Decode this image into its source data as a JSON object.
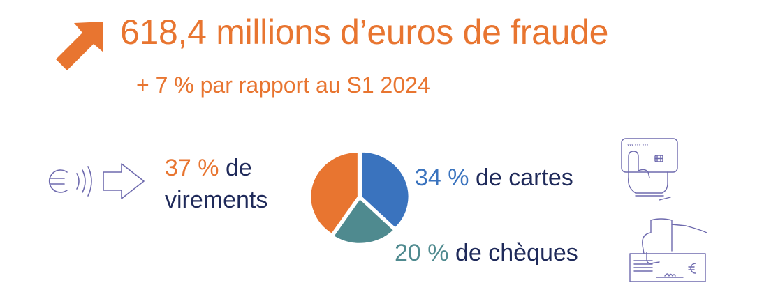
{
  "headline": "618,4 millions d’euros de fraude",
  "subline": "+ 7 % par rapport au S1 2024",
  "colors": {
    "accent": "#E87530",
    "text": "#1F2A5A",
    "icon": "#6E6AAE",
    "virements": "#E87530",
    "cartes": "#3A73BE",
    "cheques": "#4F8A8F"
  },
  "icons": {
    "trend": "arrow-up-right-icon",
    "virements": "euro-transfer-icon",
    "cartes": "hand-card-icon",
    "cheques": "hand-cheque-icon"
  },
  "labels": {
    "virements": {
      "pct": "37 %",
      "text_line1": " de",
      "text_line2": "virements"
    },
    "cartes": {
      "pct": "34 %",
      "text": " de cartes"
    },
    "cheques": {
      "pct": "20 %",
      "text": " de chèques"
    }
  },
  "chart_data": {
    "type": "pie",
    "title": "",
    "slices": [
      {
        "label": "virements",
        "value": 37,
        "color": "#E87530"
      },
      {
        "label": "cartes",
        "value": 34,
        "color": "#3A73BE"
      },
      {
        "label": "chèques",
        "value": 20,
        "color": "#4F8A8F"
      }
    ],
    "start_angle_deg": 0,
    "direction": "clockwise",
    "slice_order": [
      "cartes",
      "chèques",
      "virements"
    ]
  }
}
